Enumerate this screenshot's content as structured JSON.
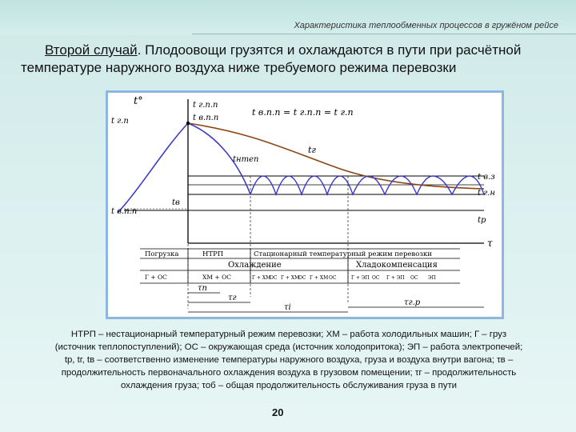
{
  "header": {
    "title": "Характеристика теплообменных процессов в гружёном рейсе"
  },
  "heading": {
    "lead": "Второй случай",
    "rest": ". Плодоовощи грузятся и охлаждаются в пути при расчётной температуре наружного воздуха ниже требуемого режима перевозки"
  },
  "figure": {
    "axis_y": "t°",
    "axis_x": "τ",
    "eq_label": "t в.п.п = t г.п.п = t г.п",
    "left_labels": {
      "t_gp": "t г.п",
      "t_vpp": "t в.п.п"
    },
    "top_labels": {
      "t_gpp": "t г.п.п",
      "t_vpp": "t в.п.п"
    },
    "curve_labels": {
      "t_g": "tг",
      "t_ntep": "tнтеп",
      "t_v": "tв"
    },
    "right_labels": {
      "t_vz": "t в.з",
      "t_gn": "t г.н",
      "t_p": "tp"
    },
    "table": {
      "row1": [
        "НТРП",
        "Стационарный температурный режим перевозки"
      ],
      "row_label_load": "Погрузка",
      "row2": [
        "Охлаждение",
        "Хладокомпенсация"
      ],
      "row3": [
        "Г + ОС",
        "ХМ + ОС",
        "Г + ХМ",
        "ОС",
        "Г + ХМ",
        "ОС",
        "Г + ХМ",
        "ОС",
        "Г + ЭП",
        "ОС",
        "Г + ЭП",
        "ОС",
        "ЭП"
      ],
      "tau_labels": [
        "τп",
        "τг",
        "τi",
        "τг.р"
      ]
    }
  },
  "caption": {
    "line1": "НТРП – нестационарный температурный режим перевозки; ХМ – работа холодильных машин; Г – груз",
    "line2": "(источник теплопоступлений); ОС – окружающая среда (источник холодопритока); ЭП – работа электропечей;",
    "line3": "tр, tг, tв – соответственно изменение температуры наружного воздуха, груза и воздуха внутри вагона; τв –",
    "line4": "продолжительность первоначального охлаждения воздуха в грузовом помещении; τг – продолжительность",
    "line5": "охлаждения груза; τоб – общая продолжительность обслуживания груза в пути"
  },
  "page_number": "20",
  "colors": {
    "cargo_curve": "#8b4513",
    "air_curve": "#3a3acd",
    "frame": "#8db7e0"
  }
}
